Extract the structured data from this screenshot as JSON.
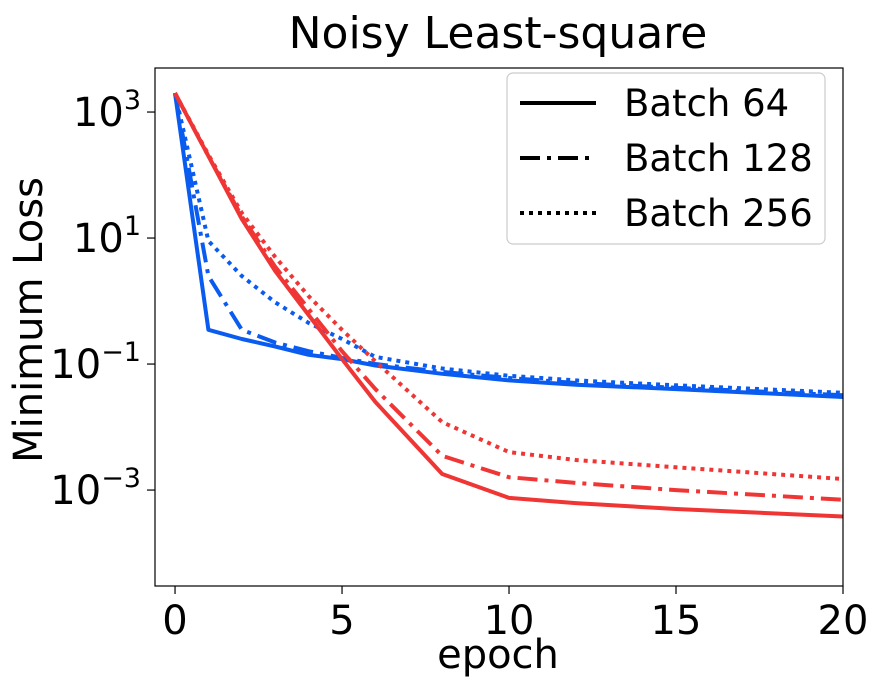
{
  "chart_data": {
    "type": "line",
    "title": "Noisy Least-square",
    "xlabel": "epoch",
    "ylabel": "Minimum Loss",
    "xlim": [
      -0.6,
      20
    ],
    "ylim": [
      3e-05,
      5000
    ],
    "yscale": "log",
    "xticks": [
      0,
      5,
      10,
      15,
      20
    ],
    "xtick_labels": [
      "0",
      "5",
      "10",
      "15",
      "20"
    ],
    "yticks": [
      {
        "value": 1000,
        "base": "10",
        "exp": "3"
      },
      {
        "value": 10,
        "base": "10",
        "exp": "1"
      },
      {
        "value": 0.1,
        "base": "10",
        "exp": "−1"
      },
      {
        "value": 0.001,
        "base": "10",
        "exp": "−3"
      }
    ],
    "legend": {
      "placement": "top-right",
      "entries": [
        {
          "label": "Batch 64",
          "style": "solid"
        },
        {
          "label": "Batch 128",
          "style": "dashdot"
        },
        {
          "label": "Batch 256",
          "style": "dotted"
        }
      ]
    },
    "colors": {
      "blue": "#0a5cf0",
      "red": "#f03535"
    },
    "series": [
      {
        "color": "blue",
        "style": "solid",
        "x": [
          0,
          1,
          2,
          3,
          4,
          5,
          6,
          8,
          10,
          12,
          15,
          20
        ],
        "y": [
          2000,
          0.35,
          0.25,
          0.19,
          0.14,
          0.12,
          0.095,
          0.07,
          0.055,
          0.047,
          0.04,
          0.03
        ]
      },
      {
        "color": "blue",
        "style": "dashdot",
        "x": [
          0,
          1,
          2,
          3,
          4,
          5,
          6,
          8,
          10,
          12,
          15,
          20
        ],
        "y": [
          2000,
          2.5,
          0.35,
          0.22,
          0.16,
          0.125,
          0.1,
          0.075,
          0.06,
          0.05,
          0.042,
          0.032
        ]
      },
      {
        "color": "blue",
        "style": "dotted",
        "x": [
          0,
          1,
          2,
          3,
          4,
          5,
          6,
          8,
          10,
          12,
          15,
          20
        ],
        "y": [
          2000,
          9,
          2.5,
          0.95,
          0.45,
          0.25,
          0.13,
          0.085,
          0.065,
          0.055,
          0.046,
          0.035
        ]
      },
      {
        "color": "red",
        "style": "solid",
        "x": [
          0,
          1,
          2,
          3,
          4,
          5,
          6,
          8,
          10,
          12,
          15,
          20
        ],
        "y": [
          2000,
          200,
          20,
          3,
          0.6,
          0.12,
          0.025,
          0.0018,
          0.00075,
          0.00062,
          0.0005,
          0.00038
        ]
      },
      {
        "color": "red",
        "style": "dashdot",
        "x": [
          0,
          1,
          2,
          3,
          4,
          5,
          6,
          8,
          10,
          12,
          15,
          20
        ],
        "y": [
          2000,
          200,
          22,
          3.5,
          0.75,
          0.16,
          0.04,
          0.0035,
          0.0016,
          0.0013,
          0.001,
          0.0007
        ]
      },
      {
        "color": "red",
        "style": "dotted",
        "x": [
          0,
          1,
          2,
          3,
          4,
          5,
          6,
          8,
          10,
          12,
          15,
          20
        ],
        "y": [
          2000,
          210,
          25,
          5,
          1.2,
          0.35,
          0.11,
          0.012,
          0.004,
          0.003,
          0.0023,
          0.0015
        ]
      }
    ]
  }
}
